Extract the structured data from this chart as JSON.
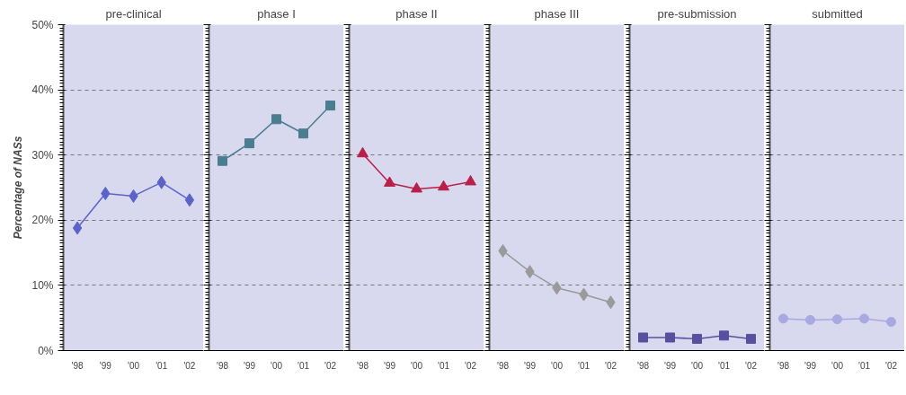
{
  "chart_data": [
    {
      "type": "line",
      "title": "pre-clinical",
      "ylabel": "Percentage of NASs",
      "categories": [
        "'98",
        "'99",
        "'00",
        "'01",
        "'02"
      ],
      "values": [
        18.8,
        24.1,
        23.7,
        25.8,
        23.1
      ],
      "color": "#5b63c8",
      "marker": "diamond",
      "line_style": "solid",
      "ylim": [
        0,
        50
      ],
      "yticks": [
        {
          "value": 0,
          "label": "0%"
        },
        {
          "value": 10,
          "label": "10%"
        },
        {
          "value": 20,
          "label": "20%"
        },
        {
          "value": 30,
          "label": "30%"
        },
        {
          "value": 40,
          "label": "40%"
        },
        {
          "value": 50,
          "label": "50%"
        }
      ],
      "grid": "y"
    },
    {
      "type": "line",
      "title": "phase I",
      "categories": [
        "'98",
        "'99",
        "'00",
        "'01",
        "'02"
      ],
      "values": [
        29.1,
        31.8,
        35.5,
        33.3,
        37.6
      ],
      "color": "#4a7d8f",
      "marker": "square",
      "line_style": "solid",
      "ylim": [
        0,
        50
      ],
      "yticks": [
        0,
        10,
        20,
        30,
        40,
        50
      ],
      "grid": "y",
      "tick_labels": "x"
    },
    {
      "type": "line",
      "title": "phase II",
      "categories": [
        "'98",
        "'99",
        "'00",
        "'01",
        "'02"
      ],
      "values": [
        30.2,
        25.7,
        24.8,
        25.1,
        25.9
      ],
      "color": "#b8204a",
      "marker": "triangle",
      "line_style": "solid",
      "ylim": [
        0,
        50
      ],
      "yticks": [
        0,
        10,
        20,
        30,
        40,
        50
      ],
      "grid": "y",
      "tick_labels": "x"
    },
    {
      "type": "line",
      "title": "phase III",
      "categories": [
        "'98",
        "'99",
        "'00",
        "'01",
        "'02"
      ],
      "values": [
        15.3,
        12.1,
        9.6,
        8.6,
        7.4
      ],
      "color": "#9a9a9a",
      "marker": "diamond",
      "line_style": "solid",
      "ylim": [
        0,
        50
      ],
      "yticks": [
        0,
        10,
        20,
        30,
        40,
        50
      ],
      "grid": "y",
      "tick_labels": "x"
    },
    {
      "type": "line",
      "title": "pre-submission",
      "categories": [
        "'98",
        "'99",
        "'00",
        "'01",
        "'02"
      ],
      "values": [
        2.0,
        2.0,
        1.8,
        2.3,
        1.8
      ],
      "color": "#5a4f9e",
      "marker": "square",
      "line_style": "solid",
      "ylim": [
        0,
        50
      ],
      "yticks": [
        0,
        10,
        20,
        30,
        40,
        50
      ],
      "grid": "y",
      "tick_labels": "x"
    },
    {
      "type": "line",
      "title": "submitted",
      "categories": [
        "'98",
        "'99",
        "'00",
        "'01",
        "'02"
      ],
      "values": [
        4.9,
        4.7,
        4.8,
        4.9,
        4.4
      ],
      "color": "#a9a8e0",
      "marker": "circle",
      "line_style": "solid",
      "ylim": [
        0,
        50
      ],
      "yticks": [
        0,
        10,
        20,
        30,
        40,
        50
      ],
      "grid": "y",
      "tick_labels": "x"
    }
  ]
}
